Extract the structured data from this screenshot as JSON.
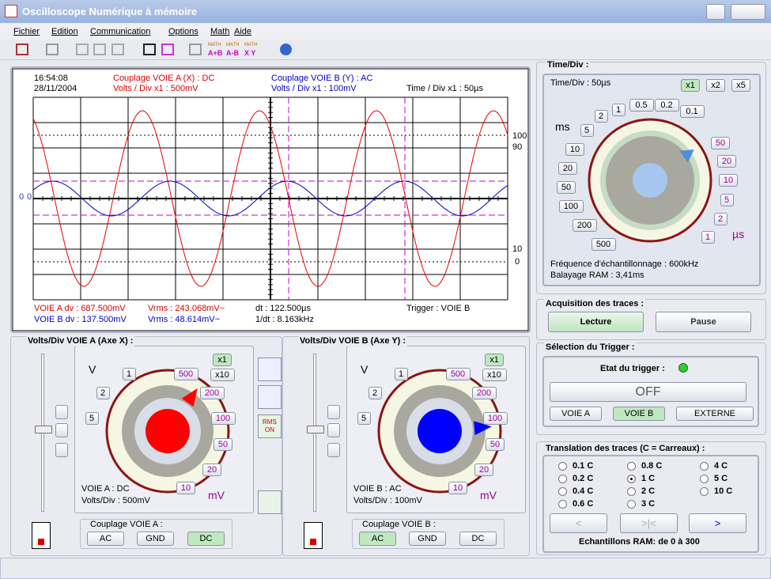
{
  "window": {
    "title": "Oscilloscope Numérique à mémoire"
  },
  "menu": [
    "Fichier",
    "Edition",
    "Communication",
    "Options",
    "Math",
    "Aide"
  ],
  "toolbar": {
    "math_buttons": [
      {
        "top": "MATH",
        "bottom": "A+B"
      },
      {
        "top": "MATH",
        "bottom": "A-B"
      },
      {
        "top": "MATH",
        "bottom": "X Y"
      }
    ]
  },
  "scope": {
    "time": "16:54:08",
    "date": "28/11/2004",
    "coupling_a": "Couplage VOIE A (X) : DC",
    "volts_a": "Volts / Div x1 : 500mV",
    "coupling_b": "Couplage VOIE B (Y) : AC",
    "volts_b": "Volts / Div x1 : 100mV",
    "time_div": "Time / Div x1 : 50µs",
    "right_labels": [
      "100",
      "90",
      "10",
      "0"
    ],
    "left_labels": [
      "0",
      "0"
    ],
    "measures": {
      "dv_a": "VOIE A dv : 687.500mV",
      "vrms_a": "Vrms : 243.068mV~",
      "dt": "dt : 122.500µs",
      "trigger": "Trigger : VOIE B",
      "dv_b": "VOIE B dv : 137.500mV",
      "vrms_b": "Vrms : 48.614mV~",
      "inv_dt": "1/dt : 8.163kHz"
    }
  },
  "time_div": {
    "title": "Time/Div :",
    "current": "Time/Div : 50µs",
    "multipliers": [
      "x1",
      "x2",
      "x5"
    ],
    "ms_unit": "ms",
    "us_unit": "µs",
    "ms_labels": [
      "1",
      "0.5",
      "0.2",
      "0.1",
      "2",
      "5",
      "10",
      "20",
      "50",
      "100",
      "200",
      "500"
    ],
    "us_labels": [
      "50",
      "20",
      "10",
      "5",
      "2",
      "1"
    ],
    "sampling": "Fréquence d'échantillonnage : 600kHz",
    "ram_sweep": "Balayage RAM : 3,41ms"
  },
  "acquisition": {
    "title": "Acquisition des traces :",
    "play": "Lecture",
    "pause": "Pause"
  },
  "trigger": {
    "title": "Sélection du Trigger :",
    "state": "Etat du trigger :",
    "off": "OFF",
    "sources": [
      "VOIE A",
      "VOIE B",
      "EXTERNE"
    ]
  },
  "translation": {
    "title": "Translation des traces (C = Carreaux) :",
    "options": [
      "0.1 C",
      "0.8 C",
      "4 C",
      "0.2 C",
      "1 C",
      "5 C",
      "0.4 C",
      "2 C",
      "10 C",
      "0.6 C",
      "3 C"
    ],
    "buttons": [
      "<",
      ">|<",
      ">"
    ],
    "samples": "Echantillons RAM: de 0 à 300"
  },
  "channel_a": {
    "title": "Volts/Div VOIE A (Axe X) :",
    "v_unit": "V",
    "mv_unit": "mV",
    "labels": [
      "1",
      "500",
      "2",
      "200",
      "5",
      "100",
      "50",
      "20",
      "10"
    ],
    "multipliers": [
      "x1",
      "x10"
    ],
    "status": "VOIE A : DC",
    "volts": "Volts/Div : 500mV",
    "coupling_title": "Couplage VOIE A :",
    "coupling": [
      "AC",
      "GND",
      "DC"
    ]
  },
  "channel_b": {
    "title": "Volts/Div VOIE B (Axe Y) :",
    "v_unit": "V",
    "mv_unit": "mV",
    "labels": [
      "1",
      "500",
      "2",
      "200",
      "5",
      "100",
      "50",
      "20",
      "10"
    ],
    "multipliers": [
      "x1",
      "x10"
    ],
    "status": "VOIE B : AC",
    "volts": "Volts/Div : 100mV",
    "coupling_title": "Couplage VOIE B :",
    "coupling": [
      "AC",
      "GND",
      "DC"
    ]
  },
  "rms_button": {
    "top": "RMS",
    "bottom": "ON"
  }
}
